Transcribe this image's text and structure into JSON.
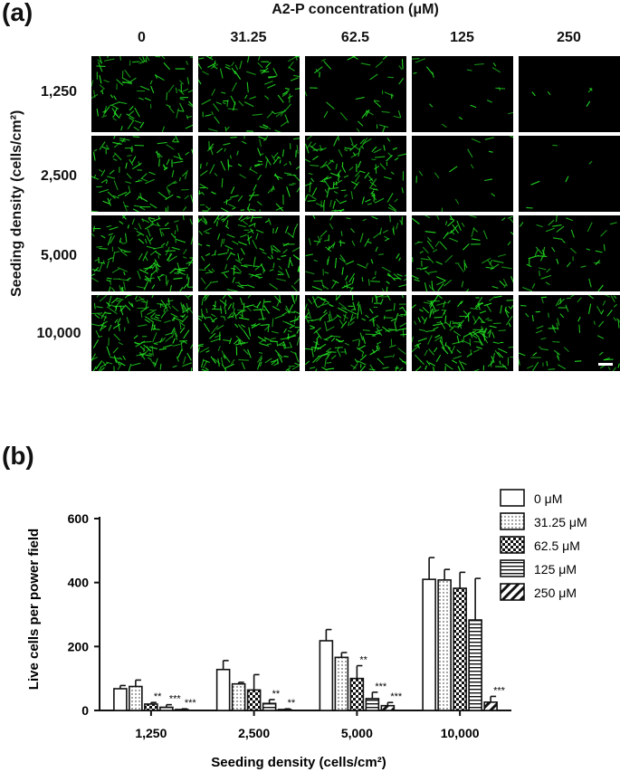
{
  "panel_a": {
    "label": "(a)",
    "title": "A2-P concentration (μM)",
    "concentrations": [
      "0",
      "31.25",
      "62.5",
      "125",
      "250"
    ],
    "y_title": "Seeding density (cells/cm²)",
    "densities": [
      "1,250",
      "2,500",
      "5,000",
      "10,000"
    ],
    "image_density": [
      [
        0.55,
        0.5,
        0.22,
        0.1,
        0.03
      ],
      [
        0.6,
        0.55,
        0.7,
        0.08,
        0.03
      ],
      [
        0.85,
        0.75,
        0.5,
        0.45,
        0.25
      ],
      [
        1.0,
        1.0,
        1.0,
        0.95,
        0.4
      ]
    ],
    "cell_color": "#22dd22"
  },
  "panel_b": {
    "label": "(b)",
    "chart_data": {
      "type": "bar",
      "xlabel": "Seeding density (cells/cm²)",
      "ylabel": "Live cells per power field",
      "categories": [
        "1,250",
        "2,500",
        "5,000",
        "10,000"
      ],
      "ylim": [
        0,
        600
      ],
      "yticks": [
        "0",
        "200",
        "400",
        "600"
      ],
      "legend_position": "top-right",
      "series": [
        {
          "name": "0 μM",
          "pattern": "plain",
          "values": [
            68,
            128,
            218,
            410
          ],
          "errors": [
            10,
            28,
            35,
            68
          ],
          "sig": [
            "",
            "",
            "",
            ""
          ]
        },
        {
          "name": "31.25 μM",
          "pattern": "dots",
          "values": [
            75,
            83,
            166,
            408
          ],
          "errors": [
            20,
            5,
            15,
            33
          ],
          "sig": [
            "",
            "",
            "",
            ""
          ]
        },
        {
          "name": "62.5 μM",
          "pattern": "checker",
          "values": [
            20,
            64,
            100,
            382
          ],
          "errors": [
            5,
            48,
            40,
            50
          ],
          "sig": [
            "**",
            "",
            "**",
            ""
          ]
        },
        {
          "name": "125 μM",
          "pattern": "hlines",
          "values": [
            10,
            22,
            37,
            283
          ],
          "errors": [
            8,
            12,
            20,
            130
          ],
          "sig": [
            "***",
            "**",
            "***",
            ""
          ]
        },
        {
          "name": "250 μM",
          "pattern": "diag",
          "values": [
            3,
            3,
            15,
            26
          ],
          "errors": [
            2,
            2,
            10,
            18
          ],
          "sig": [
            "***",
            "**",
            "***",
            "***"
          ]
        }
      ]
    }
  }
}
